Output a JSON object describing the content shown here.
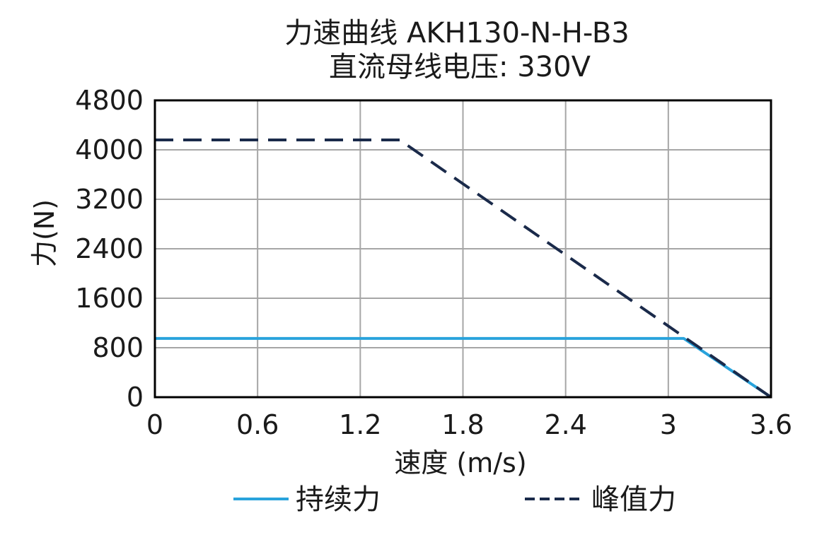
{
  "chart_data": {
    "type": "line",
    "title": "力速曲线 AKH130-N-H-B3",
    "subtitle": "直流母线电压: 330V",
    "xlabel": "速度 (m/s)",
    "ylabel": "力(N)",
    "xlim": [
      0,
      3.6
    ],
    "ylim": [
      0,
      4800
    ],
    "x_ticks": [
      "0",
      "0.6",
      "1.2",
      "1.8",
      "2.4",
      "3",
      "3.6"
    ],
    "y_ticks": [
      "0",
      "800",
      "1600",
      "2400",
      "3200",
      "4000",
      "4800"
    ],
    "grid": true,
    "legend_position": "bottom",
    "series": [
      {
        "name": "持续力",
        "line_style": "solid",
        "color": "#29a3dc",
        "points": [
          [
            0,
            950
          ],
          [
            3.09,
            950
          ],
          [
            3.6,
            0
          ]
        ]
      },
      {
        "name": "峰值力",
        "line_style": "dashed",
        "color": "#1a2a4a",
        "points": [
          [
            0,
            4160
          ],
          [
            1.43,
            4160
          ],
          [
            3.6,
            0
          ]
        ]
      }
    ]
  }
}
